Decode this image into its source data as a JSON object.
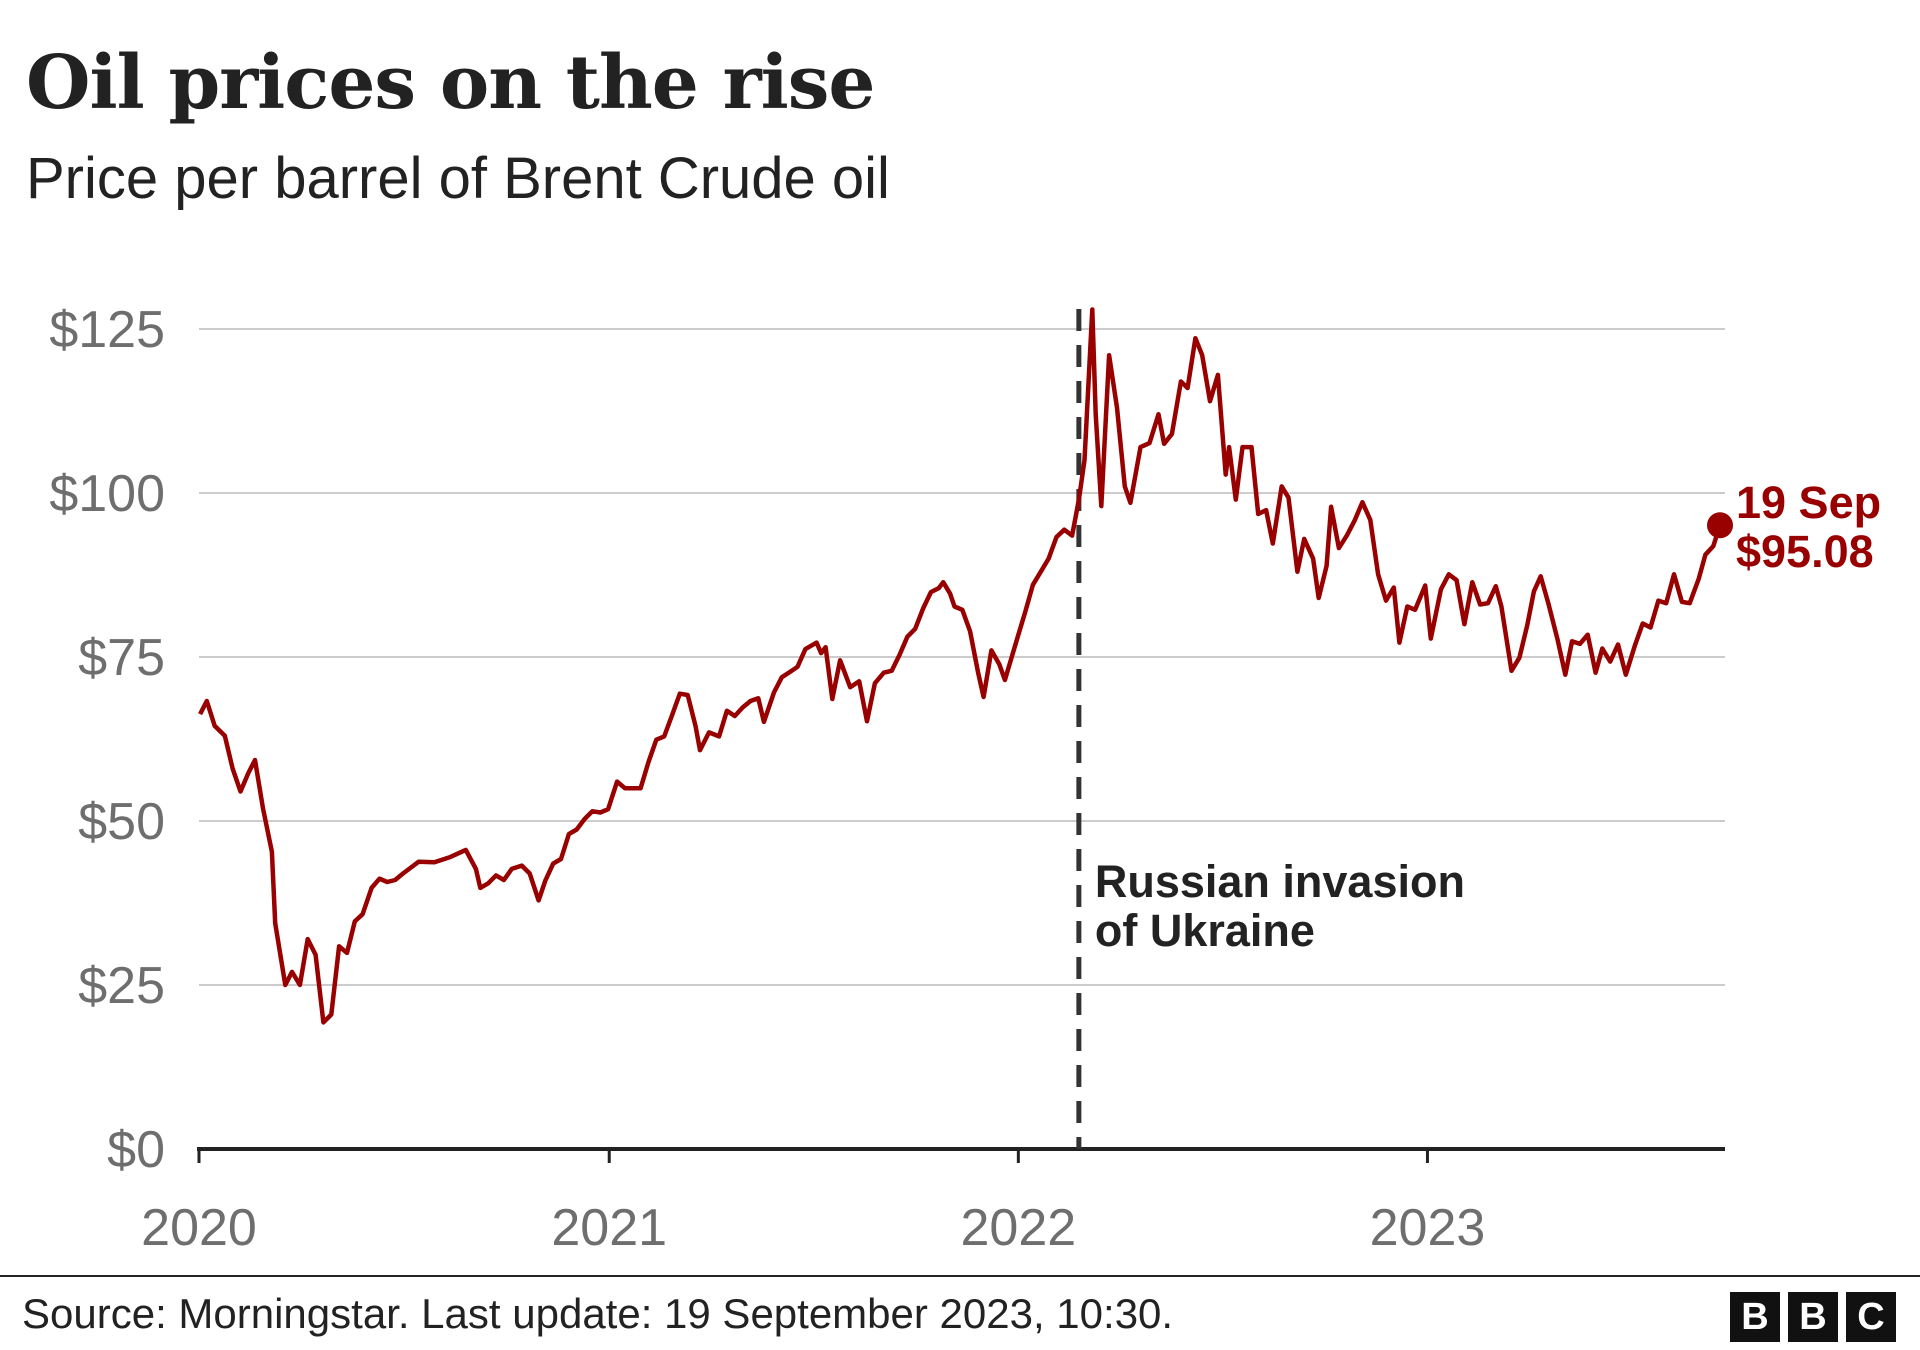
{
  "title": "Oil prices on the rise",
  "subtitle": "Price per barrel of Brent Crude oil",
  "source": "Source: Morningstar. Last update: 19 September 2023, 10:30.",
  "logo": "BBC",
  "chart_data": {
    "type": "line",
    "title": "Oil prices on the rise",
    "subtitle": "Price per barrel of Brent Crude oil",
    "xlabel": "",
    "ylabel": "",
    "ylim": [
      0,
      125
    ],
    "xlim": [
      "2020-01-01",
      "2023-09-19"
    ],
    "grid": true,
    "line_color": "#990000",
    "y_ticks": [
      {
        "value": 0,
        "label": "$0"
      },
      {
        "value": 25,
        "label": "$25"
      },
      {
        "value": 50,
        "label": "$50"
      },
      {
        "value": 75,
        "label": "$75"
      },
      {
        "value": 100,
        "label": "$100"
      },
      {
        "value": 125,
        "label": "$125"
      }
    ],
    "x_ticks": [
      {
        "value": "2020-01-01",
        "label": "2020"
      },
      {
        "value": "2021-01-01",
        "label": "2021"
      },
      {
        "value": "2022-01-01",
        "label": "2022"
      },
      {
        "value": "2023-01-01",
        "label": "2023"
      }
    ],
    "annotation": {
      "date": "2022-02-24",
      "lines": [
        "Russian invasion",
        "of Ukraine"
      ]
    },
    "end_label": {
      "date": "2023-09-19",
      "value": 95.08,
      "date_label": "19 Sep",
      "value_label": "$95.08"
    },
    "series": [
      {
        "points": [
          [
            "2020-01-02",
            66.3
          ],
          [
            "2020-01-08",
            68.3
          ],
          [
            "2020-01-15",
            64.5
          ],
          [
            "2020-01-24",
            63
          ],
          [
            "2020-01-31",
            58
          ],
          [
            "2020-02-07",
            54.5
          ],
          [
            "2020-02-14",
            57.3
          ],
          [
            "2020-02-20",
            59.3
          ],
          [
            "2020-02-27",
            52
          ],
          [
            "2020-03-06",
            45.3
          ],
          [
            "2020-03-09",
            34.4
          ],
          [
            "2020-03-18",
            25
          ],
          [
            "2020-03-24",
            27
          ],
          [
            "2020-03-31",
            25
          ],
          [
            "2020-04-07",
            32
          ],
          [
            "2020-04-14",
            29.6
          ],
          [
            "2020-04-21",
            19.3
          ],
          [
            "2020-04-28",
            20.5
          ],
          [
            "2020-05-05",
            30.9
          ],
          [
            "2020-05-12",
            29.9
          ],
          [
            "2020-05-19",
            34.7
          ],
          [
            "2020-05-26",
            35.8
          ],
          [
            "2020-06-03",
            39.8
          ],
          [
            "2020-06-10",
            41.2
          ],
          [
            "2020-06-17",
            40.7
          ],
          [
            "2020-06-24",
            41
          ],
          [
            "2020-07-01",
            42
          ],
          [
            "2020-07-15",
            43.8
          ],
          [
            "2020-07-29",
            43.7
          ],
          [
            "2020-08-12",
            44.5
          ],
          [
            "2020-08-26",
            45.6
          ],
          [
            "2020-09-04",
            42.7
          ],
          [
            "2020-09-08",
            39.8
          ],
          [
            "2020-09-15",
            40.5
          ],
          [
            "2020-09-22",
            41.7
          ],
          [
            "2020-09-29",
            41
          ],
          [
            "2020-10-06",
            42.7
          ],
          [
            "2020-10-15",
            43.2
          ],
          [
            "2020-10-22",
            42
          ],
          [
            "2020-10-30",
            37.9
          ],
          [
            "2020-11-05",
            40.9
          ],
          [
            "2020-11-12",
            43.5
          ],
          [
            "2020-11-19",
            44.2
          ],
          [
            "2020-11-26",
            48
          ],
          [
            "2020-12-03",
            48.7
          ],
          [
            "2020-12-10",
            50.3
          ],
          [
            "2020-12-17",
            51.5
          ],
          [
            "2020-12-24",
            51.3
          ],
          [
            "2020-12-31",
            51.8
          ],
          [
            "2021-01-08",
            56
          ],
          [
            "2021-01-15",
            55
          ],
          [
            "2021-01-29",
            55
          ],
          [
            "2021-02-05",
            59
          ],
          [
            "2021-02-12",
            62.4
          ],
          [
            "2021-02-19",
            62.9
          ],
          [
            "2021-02-26",
            66.1
          ],
          [
            "2021-03-05",
            69.4
          ],
          [
            "2021-03-12",
            69.2
          ],
          [
            "2021-03-19",
            64.5
          ],
          [
            "2021-03-23",
            60.8
          ],
          [
            "2021-03-31",
            63.5
          ],
          [
            "2021-04-09",
            62.9
          ],
          [
            "2021-04-16",
            66.8
          ],
          [
            "2021-04-23",
            66
          ],
          [
            "2021-04-30",
            67.3
          ],
          [
            "2021-05-07",
            68.3
          ],
          [
            "2021-05-14",
            68.7
          ],
          [
            "2021-05-19",
            65.1
          ],
          [
            "2021-05-28",
            69.6
          ],
          [
            "2021-06-04",
            71.9
          ],
          [
            "2021-06-11",
            72.7
          ],
          [
            "2021-06-18",
            73.5
          ],
          [
            "2021-06-25",
            76.2
          ],
          [
            "2021-07-05",
            77.2
          ],
          [
            "2021-07-09",
            75.6
          ],
          [
            "2021-07-13",
            76.5
          ],
          [
            "2021-07-19",
            68.6
          ],
          [
            "2021-07-26",
            74.5
          ],
          [
            "2021-08-04",
            70.4
          ],
          [
            "2021-08-12",
            71.3
          ],
          [
            "2021-08-19",
            65.2
          ],
          [
            "2021-08-26",
            71
          ],
          [
            "2021-09-03",
            72.6
          ],
          [
            "2021-09-10",
            72.9
          ],
          [
            "2021-09-17",
            75.3
          ],
          [
            "2021-09-24",
            78.1
          ],
          [
            "2021-10-01",
            79.3
          ],
          [
            "2021-10-08",
            82.4
          ],
          [
            "2021-10-15",
            84.9
          ],
          [
            "2021-10-22",
            85.5
          ],
          [
            "2021-10-26",
            86.4
          ],
          [
            "2021-11-01",
            84.7
          ],
          [
            "2021-11-05",
            82.7
          ],
          [
            "2021-11-12",
            82.2
          ],
          [
            "2021-11-19",
            78.9
          ],
          [
            "2021-11-26",
            72.7
          ],
          [
            "2021-12-01",
            68.9
          ],
          [
            "2021-12-08",
            76
          ],
          [
            "2021-12-15",
            73.9
          ],
          [
            "2021-12-20",
            71.5
          ],
          [
            "2021-12-31",
            77.8
          ],
          [
            "2022-01-07",
            81.8
          ],
          [
            "2022-01-14",
            86
          ],
          [
            "2022-01-21",
            88
          ],
          [
            "2022-01-28",
            90
          ],
          [
            "2022-02-04",
            93.3
          ],
          [
            "2022-02-11",
            94.4
          ],
          [
            "2022-02-18",
            93.5
          ],
          [
            "2022-02-24",
            99
          ],
          [
            "2022-03-01",
            105
          ],
          [
            "2022-03-08",
            127.98
          ],
          [
            "2022-03-11",
            112
          ],
          [
            "2022-03-16",
            98
          ],
          [
            "2022-03-23",
            121
          ],
          [
            "2022-03-30",
            113
          ],
          [
            "2022-04-06",
            101
          ],
          [
            "2022-04-11",
            98.5
          ],
          [
            "2022-04-20",
            107
          ],
          [
            "2022-04-28",
            107.6
          ],
          [
            "2022-05-06",
            112
          ],
          [
            "2022-05-11",
            107.5
          ],
          [
            "2022-05-18",
            109
          ],
          [
            "2022-05-26",
            117
          ],
          [
            "2022-06-01",
            116
          ],
          [
            "2022-06-08",
            123.6
          ],
          [
            "2022-06-14",
            121
          ],
          [
            "2022-06-21",
            114
          ],
          [
            "2022-06-28",
            118
          ],
          [
            "2022-07-05",
            102.8
          ],
          [
            "2022-07-08",
            107
          ],
          [
            "2022-07-14",
            99
          ],
          [
            "2022-07-20",
            107
          ],
          [
            "2022-07-28",
            107
          ],
          [
            "2022-08-03",
            96.8
          ],
          [
            "2022-08-10",
            97.4
          ],
          [
            "2022-08-16",
            92.3
          ],
          [
            "2022-08-24",
            101
          ],
          [
            "2022-08-30",
            99.3
          ],
          [
            "2022-09-07",
            88
          ],
          [
            "2022-09-13",
            93
          ],
          [
            "2022-09-21",
            90
          ],
          [
            "2022-09-26",
            84
          ],
          [
            "2022-10-03",
            88.9
          ],
          [
            "2022-10-07",
            97.9
          ],
          [
            "2022-10-14",
            91.6
          ],
          [
            "2022-10-21",
            93.5
          ],
          [
            "2022-10-28",
            95.8
          ],
          [
            "2022-11-04",
            98.6
          ],
          [
            "2022-11-11",
            95.9
          ],
          [
            "2022-11-18",
            87.6
          ],
          [
            "2022-11-25",
            83.6
          ],
          [
            "2022-12-02",
            85.6
          ],
          [
            "2022-12-07",
            77.2
          ],
          [
            "2022-12-14",
            82.7
          ],
          [
            "2022-12-21",
            82.2
          ],
          [
            "2022-12-30",
            85.9
          ],
          [
            "2023-01-04",
            77.8
          ],
          [
            "2023-01-13",
            85.3
          ],
          [
            "2023-01-20",
            87.6
          ],
          [
            "2023-01-27",
            86.7
          ],
          [
            "2023-02-03",
            80
          ],
          [
            "2023-02-10",
            86.4
          ],
          [
            "2023-02-17",
            83
          ],
          [
            "2023-02-24",
            83.2
          ],
          [
            "2023-03-03",
            85.8
          ],
          [
            "2023-03-08",
            82.7
          ],
          [
            "2023-03-17",
            72.9
          ],
          [
            "2023-03-24",
            74.9
          ],
          [
            "2023-03-31",
            79.8
          ],
          [
            "2023-04-06",
            85
          ],
          [
            "2023-04-12",
            87.3
          ],
          [
            "2023-04-19",
            83.1
          ],
          [
            "2023-04-27",
            77.7
          ],
          [
            "2023-05-04",
            72.3
          ],
          [
            "2023-05-10",
            77.4
          ],
          [
            "2023-05-17",
            77
          ],
          [
            "2023-05-24",
            78.4
          ],
          [
            "2023-05-31",
            72.6
          ],
          [
            "2023-06-06",
            76.3
          ],
          [
            "2023-06-13",
            74.3
          ],
          [
            "2023-06-20",
            76.9
          ],
          [
            "2023-06-27",
            72.3
          ],
          [
            "2023-07-05",
            76.7
          ],
          [
            "2023-07-12",
            80.1
          ],
          [
            "2023-07-19",
            79.5
          ],
          [
            "2023-07-26",
            83.6
          ],
          [
            "2023-08-02",
            83.2
          ],
          [
            "2023-08-09",
            87.6
          ],
          [
            "2023-08-16",
            83.4
          ],
          [
            "2023-08-23",
            83.2
          ],
          [
            "2023-08-31",
            86.9
          ],
          [
            "2023-09-06",
            90.6
          ],
          [
            "2023-09-13",
            91.9
          ],
          [
            "2023-09-19",
            95.08
          ]
        ]
      }
    ]
  }
}
